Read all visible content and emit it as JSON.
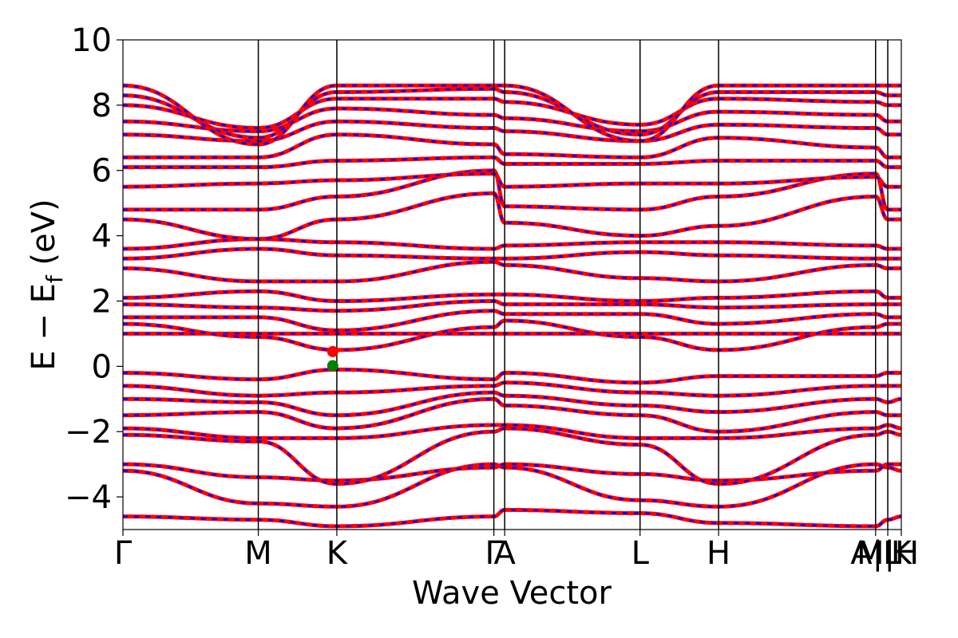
{
  "chart_data": {
    "type": "line",
    "title": "",
    "xlabel": "Wave Vector",
    "ylabel": "E − E",
    "ylabel_sub": "f",
    "ylabel_unit": " (eV)",
    "ylim": [
      -5,
      10
    ],
    "yticks": [
      {
        "value": -4,
        "label": "−4"
      },
      {
        "value": -2,
        "label": "−2"
      },
      {
        "value": 0,
        "label": "0"
      },
      {
        "value": 2,
        "label": "2"
      },
      {
        "value": 4,
        "label": "4"
      },
      {
        "value": 6,
        "label": "6"
      },
      {
        "value": 8,
        "label": "8"
      },
      {
        "value": 10,
        "label": "10"
      }
    ],
    "xlim": [
      0,
      5.75
    ],
    "kpoints": [
      {
        "value": 0.0,
        "label": "Γ"
      },
      {
        "value": 1.0,
        "label": "M"
      },
      {
        "value": 1.58,
        "label": "K"
      },
      {
        "value": 2.74,
        "label": "Γ"
      },
      {
        "value": 2.82,
        "label": "A"
      },
      {
        "value": 3.82,
        "label": "L"
      },
      {
        "value": 4.4,
        "label": "H"
      },
      {
        "value": 5.56,
        "label": "A|L"
      },
      {
        "value": 5.65,
        "label": "M|H"
      },
      {
        "value": 5.75,
        "label": "K"
      }
    ],
    "grid": false,
    "legend": "none",
    "series": [
      {
        "color": "#ff0000",
        "style": "solid"
      },
      {
        "color": "#0000ff",
        "style": "dashed"
      }
    ],
    "markers": [
      {
        "x": 1.55,
        "y": 0.45,
        "color": "#ff0000"
      },
      {
        "x": 1.55,
        "y": 0.02,
        "color": "#008000"
      }
    ],
    "bands": [
      {
        "levels": [
          -4.6,
          -4.7,
          -4.9,
          -4.6,
          -4.4,
          -4.5,
          -4.8,
          -4.9,
          -4.7,
          -4.6
        ]
      },
      {
        "levels": [
          -3.2,
          -4.2,
          -4.3,
          -3.0,
          -3.1,
          -4.1,
          -4.3,
          -3.0,
          -3.1,
          -3.2
        ]
      },
      {
        "levels": [
          -3.0,
          -3.4,
          -3.5,
          -3.1,
          -3.0,
          -3.3,
          -3.5,
          -3.2,
          -3.0,
          -3.0
        ]
      },
      {
        "levels": [
          -2.1,
          -2.3,
          -3.6,
          -2.0,
          -1.9,
          -2.4,
          -3.6,
          -2.1,
          -2.0,
          -2.1
        ]
      },
      {
        "levels": [
          -1.9,
          -2.2,
          -2.2,
          -1.8,
          -1.8,
          -2.2,
          -2.2,
          -1.9,
          -1.8,
          -1.9
        ]
      },
      {
        "levels": [
          -1.5,
          -1.4,
          -1.9,
          -1.0,
          -1.2,
          -1.5,
          -2.0,
          -1.4,
          -1.5,
          -1.5
        ]
      },
      {
        "levels": [
          -1.0,
          -1.1,
          -1.5,
          -0.8,
          -0.9,
          -1.2,
          -1.4,
          -1.0,
          -1.1,
          -1.0
        ]
      },
      {
        "levels": [
          -0.6,
          -0.9,
          -0.8,
          -0.6,
          -0.5,
          -0.8,
          -0.9,
          -0.6,
          -0.6,
          -0.6
        ]
      },
      {
        "levels": [
          -0.2,
          -0.4,
          -0.1,
          -0.4,
          -0.2,
          -0.5,
          -0.3,
          -0.3,
          -0.2,
          -0.2
        ]
      },
      {
        "levels": [
          1.0,
          1.0,
          1.0,
          1.0,
          1.0,
          1.0,
          1.0,
          1.0,
          1.0,
          1.0
        ]
      },
      {
        "levels": [
          1.3,
          0.9,
          0.5,
          1.2,
          1.4,
          0.9,
          0.5,
          1.2,
          1.3,
          1.3
        ]
      },
      {
        "levels": [
          1.5,
          1.5,
          1.1,
          1.7,
          1.6,
          1.6,
          1.3,
          1.6,
          1.5,
          1.5
        ]
      },
      {
        "levels": [
          1.9,
          1.8,
          1.7,
          2.0,
          1.9,
          1.9,
          1.8,
          1.9,
          1.9,
          1.9
        ]
      },
      {
        "levels": [
          2.1,
          2.3,
          2.0,
          2.2,
          2.2,
          2.0,
          2.1,
          2.3,
          2.1,
          2.1
        ]
      },
      {
        "levels": [
          3.0,
          2.6,
          2.6,
          3.2,
          3.1,
          2.7,
          2.6,
          3.1,
          3.0,
          3.0
        ]
      },
      {
        "levels": [
          3.3,
          3.6,
          3.4,
          3.3,
          3.3,
          3.5,
          3.4,
          3.3,
          3.3,
          3.3
        ]
      },
      {
        "levels": [
          3.6,
          3.9,
          3.8,
          3.6,
          3.7,
          3.8,
          3.8,
          3.7,
          3.6,
          3.6
        ]
      },
      {
        "levels": [
          4.5,
          3.9,
          4.5,
          5.3,
          4.4,
          4.0,
          4.3,
          5.2,
          4.5,
          4.5
        ]
      },
      {
        "levels": [
          4.8,
          4.8,
          5.2,
          6.0,
          4.9,
          4.8,
          5.2,
          5.9,
          4.8,
          4.8
        ]
      },
      {
        "levels": [
          5.5,
          5.6,
          5.7,
          5.9,
          5.5,
          5.6,
          5.6,
          5.8,
          5.5,
          5.5
        ]
      },
      {
        "levels": [
          6.1,
          6.1,
          6.3,
          6.4,
          6.2,
          6.2,
          6.3,
          6.3,
          6.1,
          6.1
        ]
      },
      {
        "levels": [
          6.4,
          6.4,
          7.1,
          6.8,
          6.5,
          6.4,
          7.0,
          6.7,
          6.4,
          6.4
        ]
      },
      {
        "levels": [
          7.1,
          6.9,
          7.5,
          7.3,
          7.2,
          6.9,
          7.4,
          7.3,
          7.1,
          7.1
        ]
      },
      {
        "levels": [
          7.5,
          7.2,
          7.9,
          7.7,
          7.6,
          7.2,
          7.8,
          7.7,
          7.5,
          7.5
        ]
      },
      {
        "levels": [
          8.0,
          7.3,
          8.2,
          8.2,
          8.1,
          7.4,
          8.2,
          8.1,
          8.0,
          8.0
        ]
      },
      {
        "levels": [
          8.3,
          7.0,
          8.4,
          8.5,
          8.4,
          7.1,
          8.4,
          8.4,
          8.3,
          8.3
        ]
      },
      {
        "levels": [
          8.6,
          6.8,
          8.6,
          8.6,
          8.6,
          6.9,
          8.6,
          8.6,
          8.6,
          8.6
        ]
      }
    ]
  }
}
